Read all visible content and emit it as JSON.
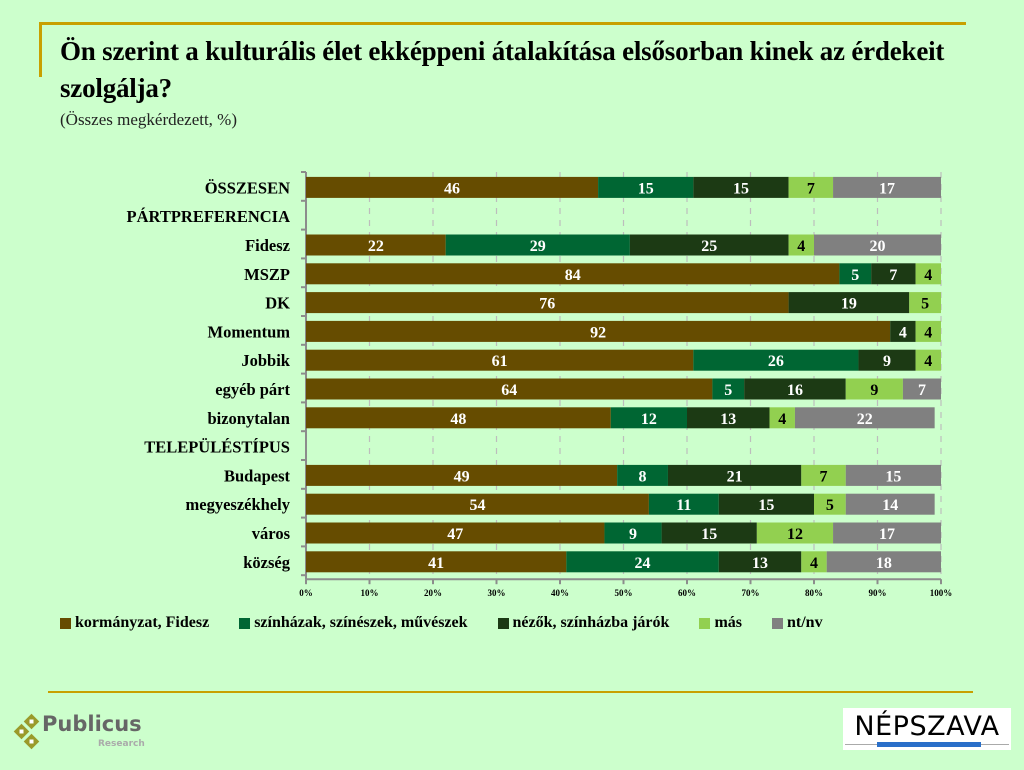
{
  "header": {
    "title": "Ön szerint a kulturális élet ekképpeni átalakítása elsősorban kinek az érdekeit szolgálja?",
    "subtitle": "(Összes megkérdezett, %)"
  },
  "colors": {
    "background": "#ccffcc",
    "accent_rule": "#c8a000"
  },
  "chart_data": {
    "type": "bar",
    "orientation": "horizontal-stacked-100",
    "title": "Ön szerint a kulturális élet ekképpeni átalakítása elsősorban kinek az érdekeit szolgálja?",
    "subtitle": "(Összes megkérdezett, %)",
    "xlabel": "",
    "ylabel": "",
    "xlim": [
      0,
      100
    ],
    "x_ticks": [
      "0%",
      "10%",
      "20%",
      "30%",
      "40%",
      "50%",
      "60%",
      "70%",
      "80%",
      "90%",
      "100%"
    ],
    "grid": "vertical dashed",
    "legend_position": "bottom",
    "categories": [
      "ÖSSZESEN",
      "PÁRTPREFERENCIA",
      "Fidesz",
      "MSZP",
      "DK",
      "Momentum",
      "Jobbik",
      "egyéb párt",
      "bizonytalan",
      "TELEPÜLÉSTÍPUS",
      "Budapest",
      "megyeszékhely",
      "város",
      "község"
    ],
    "series": [
      {
        "name": "kormányzat, Fidesz",
        "color": "#664c00",
        "label_color": "#ffffff",
        "values": [
          46,
          null,
          22,
          84,
          76,
          92,
          61,
          64,
          48,
          null,
          49,
          54,
          47,
          41
        ]
      },
      {
        "name": "színházak, színészek, művészek",
        "color": "#006633",
        "label_color": "#ffffff",
        "values": [
          15,
          null,
          29,
          5,
          0,
          0,
          26,
          5,
          12,
          null,
          8,
          11,
          9,
          24
        ]
      },
      {
        "name": "nézők, színházba járók",
        "color": "#1c3a14",
        "label_color": "#ffffff",
        "values": [
          15,
          null,
          25,
          7,
          19,
          4,
          9,
          16,
          13,
          null,
          21,
          15,
          15,
          13
        ]
      },
      {
        "name": "más",
        "color": "#92d050",
        "label_color": "#000000",
        "values": [
          7,
          null,
          4,
          4,
          5,
          4,
          4,
          9,
          4,
          null,
          7,
          5,
          12,
          4
        ]
      },
      {
        "name": "nt/nv",
        "color": "#808080",
        "label_color": "#ffffff",
        "values": [
          17,
          null,
          20,
          0,
          0,
          0,
          0,
          7,
          22,
          null,
          15,
          14,
          17,
          18
        ]
      }
    ]
  },
  "logos": {
    "publicus_name": "Publicus",
    "publicus_sub": "Research",
    "nepszava_name": "NÉPSZAVA"
  }
}
